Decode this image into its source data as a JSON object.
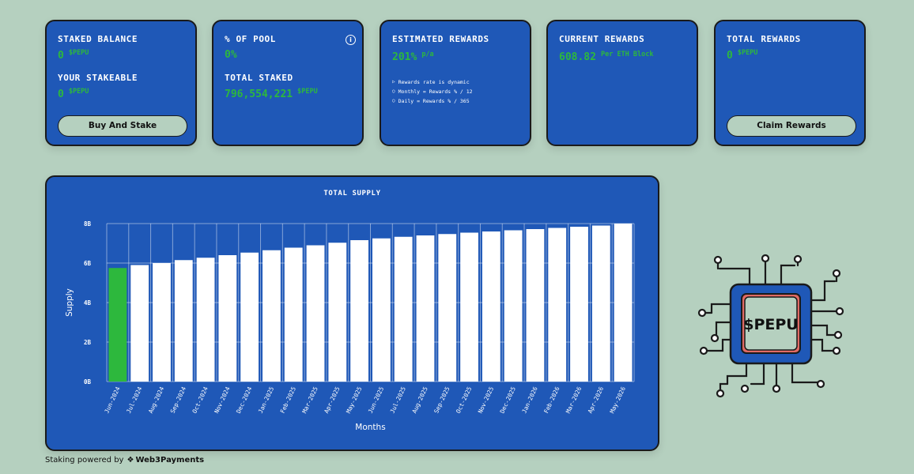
{
  "cards": {
    "staked": {
      "label": "STAKED BALANCE",
      "value": "0",
      "unit": "$PEPU",
      "label2": "YOUR STAKEABLE",
      "value2": "0",
      "unit2": "$PEPU",
      "button": "Buy And Stake"
    },
    "pool": {
      "label": "% OF POOL",
      "value": "0%",
      "label2": "TOTAL STAKED",
      "value2": "796,554,221",
      "unit2": "$PEPU",
      "info_icon": "info-icon"
    },
    "estimated": {
      "label": "ESTIMATED REWARDS",
      "value": "201%",
      "unit": "p/a",
      "notes": [
        "Rewards rate is dynamic",
        "Monthly = Rewards % / 12",
        "Daily = Rewards % / 365"
      ]
    },
    "current": {
      "label": "CURRENT REWARDS",
      "value": "608.82",
      "unit": "Per ETH Block"
    },
    "total": {
      "label": "TOTAL REWARDS",
      "value": "0",
      "unit": "$PEPU",
      "button": "Claim Rewards"
    }
  },
  "chart_data": {
    "type": "bar",
    "title": "TOTAL SUPPLY",
    "xlabel": "Months",
    "ylabel": "Supply",
    "yticks": [
      "0B",
      "2B",
      "4B",
      "6B",
      "8B"
    ],
    "ylim": [
      0,
      8
    ],
    "categories": [
      "Jun-2024",
      "Jul-2024",
      "Aug-2024",
      "Sep-2024",
      "Oct-2024",
      "Nov-2024",
      "Dec-2024",
      "Jan-2025",
      "Feb-2025",
      "Mar-2025",
      "Apr-2025",
      "May-2025",
      "Jun-2025",
      "Jul-2025",
      "Aug-2025",
      "Sep-2025",
      "Oct-2025",
      "Nov-2025",
      "Dec-2025",
      "Jan-2026",
      "Feb-2026",
      "Mar-2026",
      "Apr-2026",
      "May-2026"
    ],
    "values": [
      5.75,
      5.9,
      6.0,
      6.15,
      6.27,
      6.4,
      6.53,
      6.65,
      6.78,
      6.9,
      7.03,
      7.16,
      7.25,
      7.33,
      7.4,
      7.47,
      7.54,
      7.6,
      7.66,
      7.72,
      7.78,
      7.84,
      7.9,
      8.0
    ],
    "highlight_index": 0,
    "highlight_color": "#2db83d",
    "bar_color": "#ffffff",
    "grid": true
  },
  "logo": {
    "text": "$PEPU"
  },
  "footer": {
    "prefix": "Staking powered by",
    "brand": "Web3Payments"
  },
  "colors": {
    "background": "#b5d0bf",
    "card": "#1f58b7",
    "accent": "#2db83d"
  }
}
